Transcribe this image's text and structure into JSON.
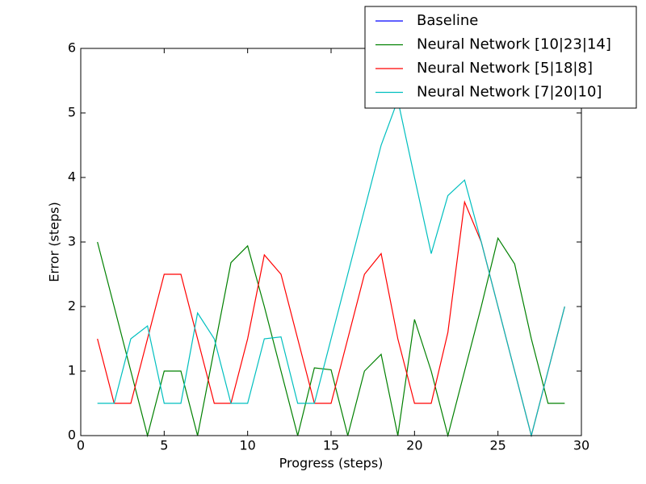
{
  "chart_data": {
    "type": "line",
    "xlabel": "Progress (steps)",
    "ylabel": "Error (steps)",
    "x": [
      1,
      2,
      3,
      4,
      5,
      6,
      7,
      8,
      9,
      10,
      11,
      12,
      13,
      14,
      15,
      16,
      17,
      18,
      19,
      20,
      21,
      22,
      23,
      24,
      25,
      26,
      27,
      28,
      29
    ],
    "series": [
      {
        "name": "Baseline",
        "color": "#0000ff",
        "values": [
          null,
          null,
          null,
          null,
          null,
          null,
          null,
          null,
          null,
          null,
          null,
          null,
          null,
          null,
          null,
          null,
          null,
          null,
          null,
          null,
          null,
          null,
          null,
          null,
          null,
          null,
          null,
          null,
          null
        ]
      },
      {
        "name": "Neural Network [10|23|14]",
        "color": "#008000",
        "values": [
          3.0,
          2.0,
          1.0,
          0,
          1.0,
          1.0,
          0,
          1.34,
          2.68,
          2.94,
          2.0,
          1.0,
          0,
          1.05,
          1.02,
          0,
          1.0,
          1.26,
          0,
          1.8,
          1.0,
          0,
          1.0,
          2.0,
          3.06,
          2.66,
          1.5,
          0.5,
          0.5
        ]
      },
      {
        "name": "Neural Network [5|18|8]",
        "color": "#ff0000",
        "values": [
          1.5,
          0.5,
          0.5,
          1.5,
          2.5,
          2.5,
          1.5,
          0.5,
          0.5,
          1.5,
          2.8,
          2.5,
          1.5,
          0.5,
          0.5,
          1.5,
          2.5,
          2.82,
          1.5,
          0.5,
          0.5,
          1.6,
          3.62,
          3.0,
          2.0,
          1.0,
          0,
          1.0,
          2.0
        ]
      },
      {
        "name": "Neural Network [7|20|10]",
        "color": "#00bfbf",
        "values": [
          0.5,
          0.5,
          1.5,
          1.7,
          0.5,
          0.5,
          1.9,
          1.5,
          0.5,
          0.5,
          1.5,
          1.53,
          0.5,
          0.5,
          1.5,
          2.5,
          3.5,
          4.5,
          5.2,
          4.0,
          2.82,
          3.72,
          3.96,
          3.0,
          2.0,
          1.0,
          0,
          1.0,
          2.0
        ]
      }
    ],
    "xlim": [
      0,
      30
    ],
    "xticks": [
      0,
      5,
      10,
      15,
      20,
      25,
      30
    ],
    "ylim": [
      0,
      6
    ],
    "yticks": [
      0,
      1,
      2,
      3,
      4,
      5,
      6
    ],
    "grid": false,
    "legend": "upper right"
  }
}
